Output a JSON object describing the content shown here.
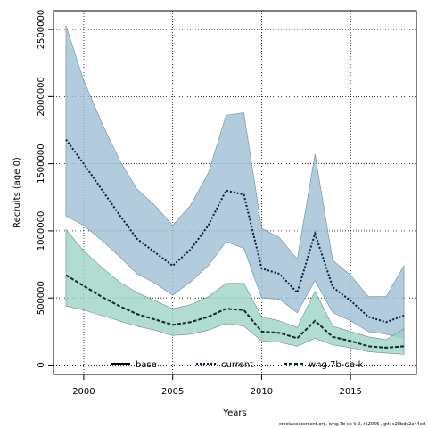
{
  "chart_data": {
    "type": "area",
    "xlabel": "Years",
    "ylabel": "Recruits (age 0)",
    "xlim": [
      1998.3,
      2018.7
    ],
    "ylim": [
      -70000,
      2640000
    ],
    "xticks": [
      2000,
      2005,
      2010,
      2015
    ],
    "yticks": [
      0,
      500000,
      1000000,
      1500000,
      2000000,
      2500000
    ],
    "grid": true,
    "legend_position": "bottom",
    "x": [
      1999,
      2000,
      2001,
      2002,
      2003,
      2004,
      2005,
      2006,
      2007,
      2008,
      2009,
      2010,
      2011,
      2012,
      2013,
      2014,
      2015,
      2016,
      2017,
      2018
    ],
    "series": [
      {
        "name": "base",
        "line_style": "solid",
        "line_color": "#000000",
        "values": [
          null,
          null,
          null,
          null,
          null,
          null,
          null,
          null,
          null,
          null,
          null,
          null,
          null,
          null,
          null,
          null,
          null,
          null,
          null,
          null
        ]
      },
      {
        "name": "current",
        "line_style": "dotted",
        "line_color": "#0a1a3a",
        "band_color": "#9fbfd4",
        "values": [
          1680000,
          1500000,
          1310000,
          1120000,
          940000,
          840000,
          740000,
          860000,
          1040000,
          1300000,
          1270000,
          720000,
          680000,
          540000,
          980000,
          580000,
          480000,
          360000,
          320000,
          370000
        ],
        "lower": [
          1110000,
          1040000,
          930000,
          810000,
          680000,
          610000,
          520000,
          620000,
          740000,
          920000,
          870000,
          500000,
          490000,
          390000,
          630000,
          390000,
          330000,
          250000,
          230000,
          200000
        ],
        "upper": [
          2530000,
          2120000,
          1810000,
          1530000,
          1310000,
          1190000,
          1040000,
          1190000,
          1430000,
          1860000,
          1880000,
          1020000,
          950000,
          790000,
          1570000,
          780000,
          670000,
          510000,
          510000,
          740000
        ]
      },
      {
        "name": "whg.7b-ce-k",
        "line_style": "dashed",
        "line_color": "#0a2a2a",
        "band_color": "#9dd3c6",
        "values": [
          670000,
          590000,
          510000,
          440000,
          380000,
          340000,
          300000,
          320000,
          360000,
          420000,
          410000,
          250000,
          240000,
          200000,
          330000,
          210000,
          180000,
          140000,
          130000,
          140000
        ],
        "lower": [
          440000,
          410000,
          370000,
          330000,
          290000,
          260000,
          220000,
          230000,
          260000,
          310000,
          290000,
          180000,
          170000,
          140000,
          200000,
          150000,
          130000,
          100000,
          90000,
          80000
        ],
        "upper": [
          1010000,
          850000,
          730000,
          620000,
          540000,
          480000,
          420000,
          450000,
          510000,
          610000,
          610000,
          360000,
          330000,
          280000,
          550000,
          290000,
          250000,
          210000,
          190000,
          270000
        ]
      }
    ]
  },
  "footer": "stockassessment.org, whg.7b-ce-k  2, r12066 , git: c28bdc2a44ed"
}
